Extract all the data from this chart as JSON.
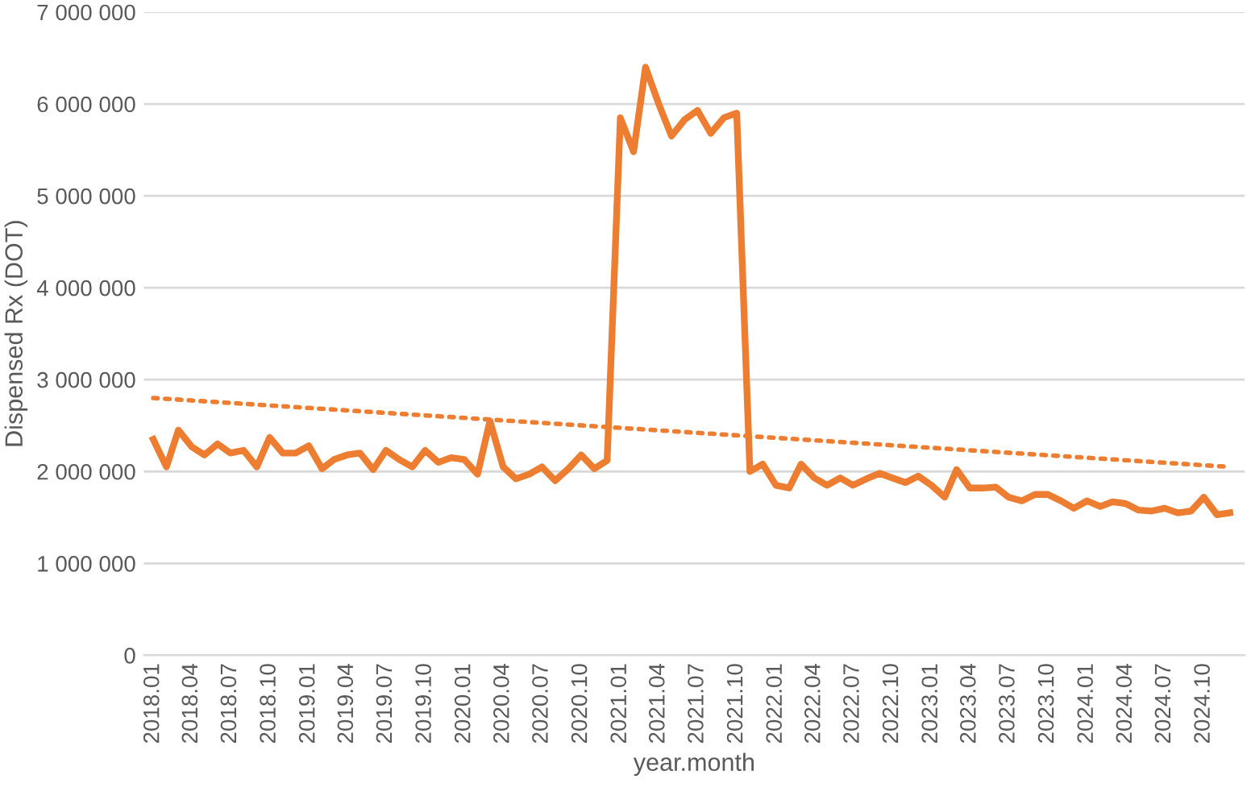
{
  "chart_data": {
    "type": "line",
    "xlabel": "year.month",
    "ylabel": "Dispensed Rx (DOT)",
    "x": [
      "2018-01",
      "2018-02",
      "2018-03",
      "2018-04",
      "2018-05",
      "2018-06",
      "2018-07",
      "2018-08",
      "2018-09",
      "2018-10",
      "2018-11",
      "2018-12",
      "2019-01",
      "2019-02",
      "2019-03",
      "2019-04",
      "2019-05",
      "2019-06",
      "2019-07",
      "2019-08",
      "2019-09",
      "2019-10",
      "2019-11",
      "2019-12",
      "2020-01",
      "2020-02",
      "2020-03",
      "2020-04",
      "2020-05",
      "2020-06",
      "2020-07",
      "2020-08",
      "2020-09",
      "2020-10",
      "2020-11",
      "2020-12",
      "2021-01",
      "2021-02",
      "2021-03",
      "2021-04",
      "2021-05",
      "2021-06",
      "2021-07",
      "2021-08",
      "2021-09",
      "2021-10",
      "2021-11",
      "2021-12",
      "2022-01",
      "2022-02",
      "2022-03",
      "2022-04",
      "2022-05",
      "2022-06",
      "2022-07",
      "2022-08",
      "2022-09",
      "2022-10",
      "2022-11",
      "2022-12",
      "2023-01",
      "2023-02",
      "2023-03",
      "2023-04",
      "2023-05",
      "2023-06",
      "2023-07",
      "2023-08",
      "2023-09",
      "2023-10",
      "2023-11",
      "2023-12",
      "2024-01",
      "2024-02",
      "2024-03",
      "2024-04",
      "2024-05",
      "2024-06",
      "2024-07",
      "2024-08",
      "2024-09",
      "2024-10",
      "2024-11",
      "2024-12"
    ],
    "series": [
      {
        "color": "#ed7d31",
        "line_style": "solid",
        "values": [
          2350000,
          2050000,
          2450000,
          2270000,
          2180000,
          2300000,
          2200000,
          2230000,
          2050000,
          2370000,
          2200000,
          2200000,
          2280000,
          2030000,
          2130000,
          2180000,
          2200000,
          2020000,
          2230000,
          2130000,
          2050000,
          2230000,
          2100000,
          2150000,
          2130000,
          1970000,
          2550000,
          2050000,
          1920000,
          1970000,
          2050000,
          1900000,
          2030000,
          2180000,
          2030000,
          2120000,
          5850000,
          5480000,
          6400000,
          6000000,
          5650000,
          5830000,
          5930000,
          5680000,
          5850000,
          5900000,
          2000000,
          2080000,
          1850000,
          1820000,
          2080000,
          1930000,
          1850000,
          1930000,
          1850000,
          1920000,
          1980000,
          1930000,
          1880000,
          1950000,
          1850000,
          1720000,
          2020000,
          1820000,
          1820000,
          1830000,
          1720000,
          1680000,
          1750000,
          1750000,
          1680000,
          1600000,
          1680000,
          1620000,
          1670000,
          1650000,
          1580000,
          1570000,
          1600000,
          1550000,
          1570000,
          1720000,
          1530000,
          1550000
        ]
      },
      {
        "color": "#ed7d31",
        "line_style": "dotted",
        "x": [
          "2018-01",
          "2024-12"
        ],
        "values": [
          2800000,
          2050000
        ]
      }
    ],
    "xlim": [
      "2017-12-10",
      "2025-01-05"
    ],
    "xticks": [
      {
        "value": "2018-01",
        "label": "2018.01"
      },
      {
        "value": "2018-04",
        "label": "2018.04"
      },
      {
        "value": "2018-07",
        "label": "2018.07"
      },
      {
        "value": "2018-10",
        "label": "2018.10"
      },
      {
        "value": "2019-01",
        "label": "2019.01"
      },
      {
        "value": "2019-04",
        "label": "2019.04"
      },
      {
        "value": "2019-07",
        "label": "2019.07"
      },
      {
        "value": "2019-10",
        "label": "2019.10"
      },
      {
        "value": "2020-01",
        "label": "2020.01"
      },
      {
        "value": "2020-04",
        "label": "2020.04"
      },
      {
        "value": "2020-07",
        "label": "2020.07"
      },
      {
        "value": "2020-10",
        "label": "2020.10"
      },
      {
        "value": "2021-01",
        "label": "2021.01"
      },
      {
        "value": "2021-04",
        "label": "2021.04"
      },
      {
        "value": "2021-07",
        "label": "2021.07"
      },
      {
        "value": "2021-10",
        "label": "2021.10"
      },
      {
        "value": "2022-01",
        "label": "2022.01"
      },
      {
        "value": "2022-04",
        "label": "2022.04"
      },
      {
        "value": "2022-07",
        "label": "2022.07"
      },
      {
        "value": "2022-10",
        "label": "2022.10"
      },
      {
        "value": "2023-01",
        "label": "2023.01"
      },
      {
        "value": "2023-04",
        "label": "2023.04"
      },
      {
        "value": "2023-07",
        "label": "2023.07"
      },
      {
        "value": "2023-10",
        "label": "2023.10"
      },
      {
        "value": "2024-01",
        "label": "2024.01"
      },
      {
        "value": "2024-04",
        "label": "2024.04"
      },
      {
        "value": "2024-07",
        "label": "2024.07"
      },
      {
        "value": "2024-10",
        "label": "2024.10"
      }
    ],
    "ylim": [
      0,
      7000000
    ],
    "yticks": [
      {
        "value": 0,
        "label": "0"
      },
      {
        "value": 1000000,
        "label": "1 000 000"
      },
      {
        "value": 2000000,
        "label": "2 000 000"
      },
      {
        "value": 3000000,
        "label": "3 000 000"
      },
      {
        "value": 4000000,
        "label": "4 000 000"
      },
      {
        "value": 5000000,
        "label": "5 000 000"
      },
      {
        "value": 6000000,
        "label": "6 000 000"
      },
      {
        "value": 7000000,
        "label": "7 000 000"
      }
    ],
    "grid": "y",
    "legend": false,
    "marker": "none"
  }
}
